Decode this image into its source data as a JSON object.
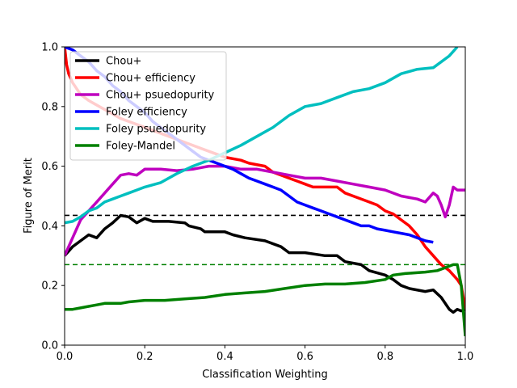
{
  "chart_data": {
    "type": "line",
    "xlabel": "Classification Weighting",
    "ylabel": "Figure of Merit",
    "xlim": [
      0,
      1
    ],
    "ylim": [
      0,
      1
    ],
    "xticks": [
      "0.0",
      "0.2",
      "0.4",
      "0.6",
      "0.8",
      "1.0"
    ],
    "yticks": [
      "0.0",
      "0.2",
      "0.4",
      "0.6",
      "0.8",
      "1.0"
    ],
    "grid": false,
    "legend_position": "top-left",
    "series": [
      {
        "name": "Chou+",
        "color": "#000000",
        "x": [
          0,
          0.02,
          0.04,
          0.06,
          0.08,
          0.1,
          0.12,
          0.14,
          0.16,
          0.18,
          0.2,
          0.22,
          0.26,
          0.3,
          0.31,
          0.34,
          0.35,
          0.4,
          0.42,
          0.45,
          0.5,
          0.54,
          0.56,
          0.6,
          0.65,
          0.68,
          0.7,
          0.74,
          0.76,
          0.8,
          0.82,
          0.84,
          0.86,
          0.9,
          0.92,
          0.94,
          0.96,
          0.97,
          0.98,
          0.99,
          1.0
        ],
        "y": [
          0.3,
          0.33,
          0.35,
          0.37,
          0.36,
          0.39,
          0.41,
          0.435,
          0.43,
          0.41,
          0.425,
          0.415,
          0.415,
          0.41,
          0.4,
          0.39,
          0.38,
          0.38,
          0.37,
          0.36,
          0.35,
          0.33,
          0.31,
          0.31,
          0.3,
          0.3,
          0.28,
          0.27,
          0.25,
          0.235,
          0.22,
          0.2,
          0.19,
          0.18,
          0.185,
          0.16,
          0.12,
          0.11,
          0.12,
          0.115,
          0.12
        ]
      },
      {
        "name": "Chou+ efficiency",
        "color": "#ff0000",
        "x": [
          0,
          0.005,
          0.01,
          0.02,
          0.04,
          0.06,
          0.1,
          0.14,
          0.18,
          0.22,
          0.26,
          0.3,
          0.34,
          0.38,
          0.4,
          0.44,
          0.46,
          0.5,
          0.52,
          0.56,
          0.58,
          0.6,
          0.62,
          0.68,
          0.7,
          0.72,
          0.76,
          0.78,
          0.8,
          0.82,
          0.84,
          0.86,
          0.88,
          0.9,
          0.92,
          0.94,
          0.96,
          0.98,
          0.99,
          1.0
        ],
        "y": [
          1.0,
          0.94,
          0.91,
          0.88,
          0.84,
          0.82,
          0.79,
          0.76,
          0.74,
          0.72,
          0.7,
          0.68,
          0.66,
          0.64,
          0.63,
          0.62,
          0.61,
          0.6,
          0.58,
          0.56,
          0.55,
          0.54,
          0.53,
          0.53,
          0.51,
          0.5,
          0.48,
          0.47,
          0.45,
          0.44,
          0.42,
          0.4,
          0.37,
          0.33,
          0.3,
          0.27,
          0.25,
          0.22,
          0.2,
          0.12
        ]
      },
      {
        "name": "Chou+ psuedopurity",
        "color": "#bf00bf",
        "x": [
          0,
          0.02,
          0.04,
          0.06,
          0.08,
          0.1,
          0.12,
          0.14,
          0.16,
          0.18,
          0.2,
          0.24,
          0.28,
          0.32,
          0.36,
          0.4,
          0.44,
          0.48,
          0.52,
          0.56,
          0.6,
          0.64,
          0.68,
          0.72,
          0.76,
          0.8,
          0.84,
          0.88,
          0.9,
          0.92,
          0.93,
          0.94,
          0.95,
          0.96,
          0.97,
          0.98,
          1.0
        ],
        "y": [
          0.3,
          0.36,
          0.42,
          0.45,
          0.48,
          0.51,
          0.54,
          0.57,
          0.575,
          0.57,
          0.59,
          0.59,
          0.585,
          0.59,
          0.6,
          0.6,
          0.59,
          0.59,
          0.58,
          0.57,
          0.56,
          0.56,
          0.55,
          0.54,
          0.53,
          0.52,
          0.5,
          0.49,
          0.48,
          0.51,
          0.5,
          0.47,
          0.43,
          0.47,
          0.53,
          0.52,
          0.52
        ]
      },
      {
        "name": "Foley efficiency",
        "color": "#0000ff",
        "x": [
          0,
          0.02,
          0.04,
          0.06,
          0.08,
          0.1,
          0.12,
          0.14,
          0.16,
          0.18,
          0.2,
          0.22,
          0.24,
          0.26,
          0.28,
          0.3,
          0.32,
          0.34,
          0.36,
          0.38,
          0.4,
          0.42,
          0.44,
          0.46,
          0.48,
          0.5,
          0.52,
          0.54,
          0.56,
          0.58,
          0.6,
          0.62,
          0.64,
          0.66,
          0.68,
          0.7,
          0.72,
          0.74,
          0.76,
          0.78,
          0.8,
          0.82,
          0.84,
          0.86,
          0.88,
          0.9,
          0.92
        ],
        "y": [
          1.0,
          0.99,
          0.97,
          0.95,
          0.92,
          0.9,
          0.87,
          0.85,
          0.82,
          0.8,
          0.78,
          0.75,
          0.73,
          0.71,
          0.69,
          0.67,
          0.65,
          0.63,
          0.62,
          0.61,
          0.6,
          0.59,
          0.575,
          0.56,
          0.55,
          0.54,
          0.53,
          0.52,
          0.5,
          0.48,
          0.47,
          0.46,
          0.45,
          0.44,
          0.43,
          0.42,
          0.41,
          0.4,
          0.4,
          0.39,
          0.385,
          0.38,
          0.375,
          0.37,
          0.36,
          0.35,
          0.345
        ]
      },
      {
        "name": "Foley psuedopurity",
        "color": "#00bfbf",
        "x": [
          0,
          0.02,
          0.04,
          0.06,
          0.08,
          0.1,
          0.12,
          0.14,
          0.16,
          0.18,
          0.2,
          0.24,
          0.28,
          0.32,
          0.36,
          0.4,
          0.44,
          0.48,
          0.52,
          0.56,
          0.6,
          0.64,
          0.68,
          0.72,
          0.76,
          0.8,
          0.84,
          0.88,
          0.92,
          0.96,
          0.98
        ],
        "y": [
          0.41,
          0.415,
          0.43,
          0.45,
          0.46,
          0.48,
          0.49,
          0.5,
          0.51,
          0.52,
          0.53,
          0.545,
          0.575,
          0.6,
          0.62,
          0.645,
          0.67,
          0.7,
          0.73,
          0.77,
          0.8,
          0.81,
          0.83,
          0.85,
          0.86,
          0.88,
          0.91,
          0.925,
          0.93,
          0.97,
          1.0
        ]
      },
      {
        "name": "Foley-Mandel",
        "color": "#008000",
        "x": [
          0,
          0.02,
          0.04,
          0.06,
          0.08,
          0.1,
          0.12,
          0.14,
          0.16,
          0.2,
          0.25,
          0.3,
          0.35,
          0.4,
          0.45,
          0.5,
          0.55,
          0.6,
          0.65,
          0.7,
          0.75,
          0.8,
          0.82,
          0.85,
          0.9,
          0.93,
          0.95,
          0.97,
          0.98,
          0.99,
          1.0
        ],
        "y": [
          0.12,
          0.12,
          0.125,
          0.13,
          0.135,
          0.14,
          0.14,
          0.14,
          0.145,
          0.15,
          0.15,
          0.155,
          0.16,
          0.17,
          0.175,
          0.18,
          0.19,
          0.2,
          0.205,
          0.205,
          0.21,
          0.22,
          0.235,
          0.24,
          0.245,
          0.25,
          0.26,
          0.27,
          0.27,
          0.2,
          0.03
        ]
      }
    ],
    "hlines": [
      {
        "y": 0.435,
        "color": "#000000",
        "style": "dashed"
      },
      {
        "y": 0.27,
        "color": "#008000",
        "style": "dashed"
      }
    ]
  }
}
